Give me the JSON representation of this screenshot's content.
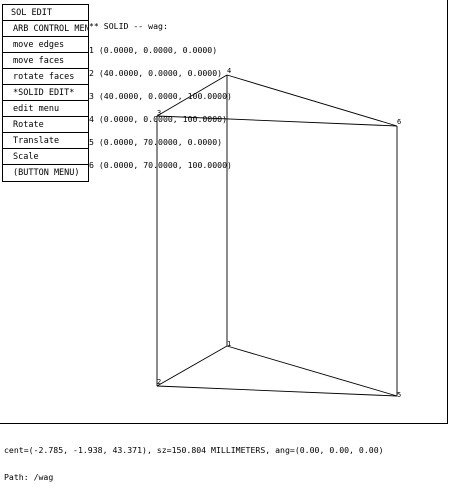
{
  "menu": {
    "title": "SOL EDIT",
    "items": [
      "ARB CONTROL MENU",
      "move edges",
      "move faces",
      "rotate faces",
      "*SOLID EDIT*",
      "edit menu",
      "Rotate",
      "Translate",
      "Scale",
      "(BUTTON MENU)"
    ]
  },
  "solid_info": {
    "header": "** SOLID -- wag:",
    "vertices": [
      "1 (0.0000, 0.0000, 0.0000)",
      "2 (40.0000, 0.0000, 0.0000)",
      "3 (40.0000, 0.0000, 100.0000)",
      "4 (0.0000, 0.0000, 100.0000)",
      "5 (0.0000, 70.0000, 0.0000)",
      "6 (0.0000, 70.0000, 100.0000)"
    ]
  },
  "vertex_labels": {
    "v1": "1",
    "v2": "2",
    "v3": "3",
    "v4": "4",
    "v5": "5",
    "v6": "6"
  },
  "status": {
    "line1": "cent=(-2.785, -1.938, 43.371), sz=150.804 MILLIMETERS, ang=(0.00, 0.00, 0.00)",
    "line2": "Path: /wag"
  }
}
